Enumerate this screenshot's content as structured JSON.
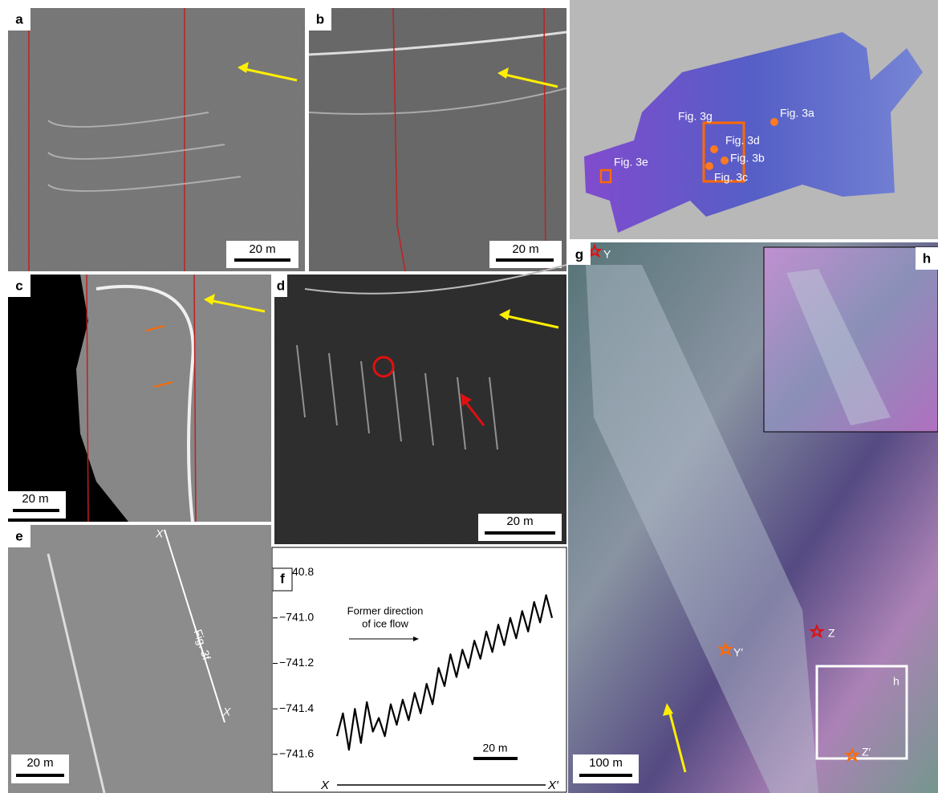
{
  "panels": {
    "a": {
      "label": "a",
      "scale_bar": "20 m"
    },
    "b": {
      "label": "b",
      "scale_bar": "20 m"
    },
    "map": {
      "labels": [
        "Fig. 3g",
        "Fig. 3a",
        "Fig. 3d",
        "Fig. 3b",
        "Fig. 3e",
        "Fig. 3c"
      ]
    },
    "c": {
      "label": "c",
      "scale_bar": "20 m"
    },
    "d": {
      "label": "d",
      "scale_bar": "20 m"
    },
    "e": {
      "label": "e",
      "scale_bar": "20 m",
      "line_start": "X′",
      "line_end": "X",
      "line_label": "Fig. 3f"
    },
    "f": {
      "label": "f",
      "annotation": [
        "Former direction",
        "of ice flow"
      ],
      "scale_bar": "20 m",
      "axis_start": "X",
      "axis_end": "X′",
      "chart_data": {
        "type": "line",
        "color": "#000000",
        "ylim": [
          -741.77,
          -740.69
        ],
        "yticks": [
          {
            "value": -740.8,
            "label": "−740.8"
          },
          {
            "value": -741.0,
            "label": "−741.0"
          },
          {
            "value": -741.2,
            "label": "−741.2"
          },
          {
            "value": -741.4,
            "label": "−741.4"
          },
          {
            "value": -741.6,
            "label": "−741.6"
          }
        ],
        "values": [
          -741.52,
          -741.42,
          -741.58,
          -741.4,
          -741.55,
          -741.37,
          -741.5,
          -741.44,
          -741.52,
          -741.38,
          -741.47,
          -741.36,
          -741.45,
          -741.33,
          -741.42,
          -741.29,
          -741.38,
          -741.22,
          -741.3,
          -741.16,
          -741.26,
          -741.14,
          -741.22,
          -741.1,
          -741.18,
          -741.06,
          -741.15,
          -741.03,
          -741.12,
          -741.0,
          -741.09,
          -740.97,
          -741.06,
          -740.93,
          -741.02,
          -740.9,
          -741.0
        ]
      }
    },
    "g": {
      "label": "g",
      "scale_bar": "100 m",
      "markers": [
        "Y",
        "Y′",
        "Z",
        "Z′"
      ],
      "box_label": "h"
    },
    "h": {
      "label": "h"
    }
  }
}
